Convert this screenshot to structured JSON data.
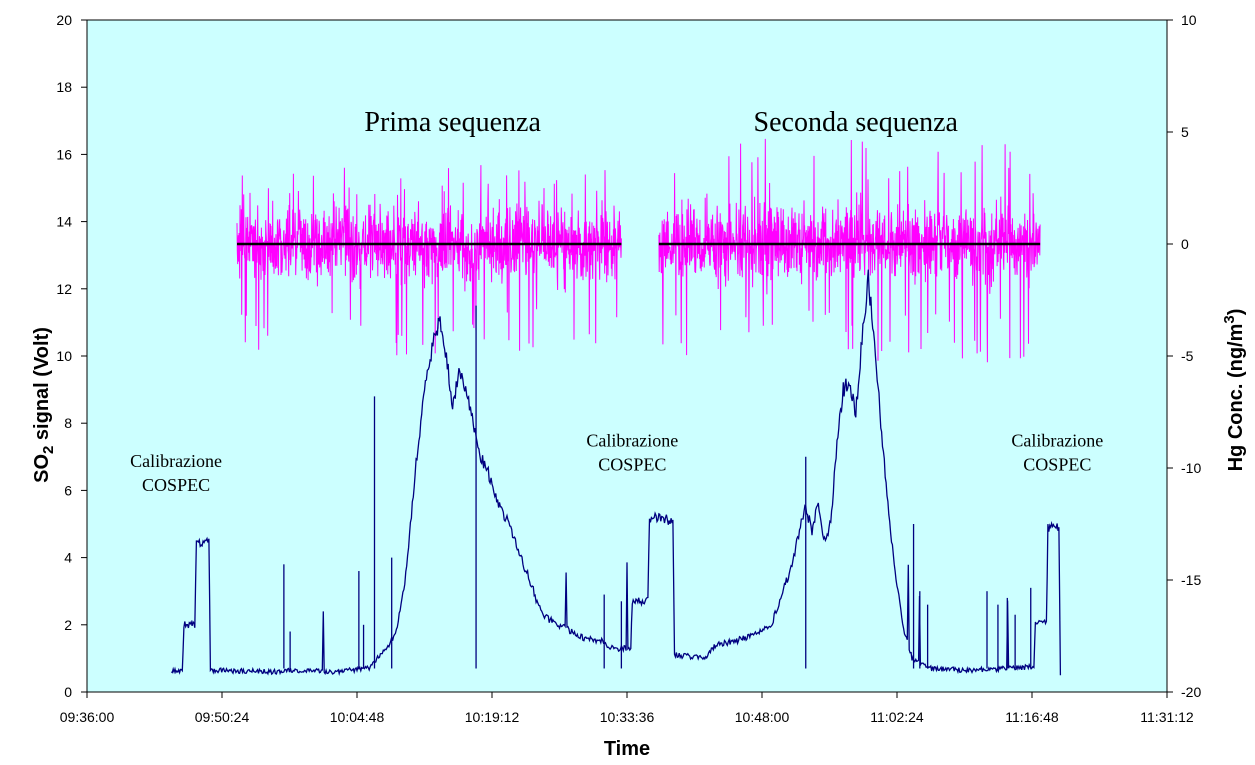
{
  "chart_data": {
    "type": "line",
    "title": "",
    "xlabel": "Time",
    "ylabel_left_main": "SO",
    "ylabel_left_sub": "2",
    "ylabel_left_rest": " signal (Volt)",
    "ylabel_right_main": "Hg Conc. (ng/m",
    "ylabel_right_sup": "3",
    "ylabel_right_rest": ")",
    "x_ticks": [
      "09:36:00",
      "09:50:24",
      "10:04:48",
      "10:19:12",
      "10:33:36",
      "10:48:00",
      "11:02:24",
      "11:16:48",
      "11:31:12"
    ],
    "y_left_ticks": [
      "0",
      "2",
      "4",
      "6",
      "8",
      "10",
      "12",
      "14",
      "16",
      "18",
      "20"
    ],
    "y_right_ticks": [
      "-20",
      "-15",
      "-10",
      "-5",
      "0",
      "5",
      "10"
    ],
    "ylim_left": [
      0,
      20
    ],
    "ylim_right": [
      -20,
      10
    ],
    "xlim": [
      "09:36:00",
      "11:31:12"
    ],
    "plot_background": "#ccffff",
    "annotations": [
      {
        "lines": [
          "Calibrazione",
          "COSPEC"
        ],
        "at_time": "09:45:30",
        "at_value": 6.7
      },
      {
        "lines": [
          "Calibrazione",
          "COSPEC"
        ],
        "at_time": "10:34:10",
        "at_value": 7.3
      },
      {
        "lines": [
          "Calibrazione",
          "COSPEC"
        ],
        "at_time": "11:19:30",
        "at_value": 7.3
      }
    ],
    "sequence_labels": [
      {
        "text": "Prima sequenza",
        "at_time": "10:15:00",
        "at_value": 17.0
      },
      {
        "text": "Seconda sequenza",
        "at_time": "10:58:00",
        "at_value": 17.0
      }
    ],
    "series": [
      {
        "axis": "left",
        "color": "#000080",
        "points": [
          [
            "09:45:00",
            0.65
          ],
          [
            "09:46:10",
            0.65
          ],
          [
            "09:46:20",
            2.0
          ],
          [
            "09:47:30",
            2.0
          ],
          [
            "09:47:40",
            4.45
          ],
          [
            "09:49:00",
            4.45
          ],
          [
            "09:49:10",
            0.65
          ],
          [
            "09:56:00",
            0.6
          ],
          [
            "09:58:00",
            0.65
          ],
          [
            "10:02:00",
            0.6
          ],
          [
            "10:06:00",
            0.7
          ],
          [
            "10:07:00",
            1.0
          ],
          [
            "10:08:00",
            1.3
          ],
          [
            "10:09:00",
            1.8
          ],
          [
            "10:10:00",
            3.5
          ],
          [
            "10:11:00",
            6.5
          ],
          [
            "10:12:00",
            9.0
          ],
          [
            "10:13:00",
            10.5
          ],
          [
            "10:13:40",
            11.0
          ],
          [
            "10:14:20",
            10.0
          ],
          [
            "10:15:00",
            8.5
          ],
          [
            "10:15:40",
            9.5
          ],
          [
            "10:16:30",
            9.0
          ],
          [
            "10:17:00",
            8.2
          ],
          [
            "10:18:00",
            7.0
          ],
          [
            "10:19:00",
            6.4
          ],
          [
            "10:20:00",
            5.5
          ],
          [
            "10:21:00",
            5.0
          ],
          [
            "10:22:00",
            4.2
          ],
          [
            "10:23:00",
            3.5
          ],
          [
            "10:24:00",
            2.7
          ],
          [
            "10:25:00",
            2.2
          ],
          [
            "10:27:00",
            1.9
          ],
          [
            "10:29:00",
            1.6
          ],
          [
            "10:31:00",
            1.5
          ],
          [
            "10:32:00",
            1.3
          ],
          [
            "10:34:00",
            1.3
          ],
          [
            "10:34:10",
            2.7
          ],
          [
            "10:35:50",
            2.7
          ],
          [
            "10:36:00",
            5.2
          ],
          [
            "10:38:30",
            5.1
          ],
          [
            "10:38:40",
            1.1
          ],
          [
            "10:42:00",
            1.0
          ],
          [
            "10:43:00",
            1.4
          ],
          [
            "10:45:00",
            1.5
          ],
          [
            "10:47:00",
            1.7
          ],
          [
            "10:49:00",
            2.0
          ],
          [
            "10:50:00",
            2.8
          ],
          [
            "10:51:00",
            3.6
          ],
          [
            "10:52:00",
            4.8
          ],
          [
            "10:52:40",
            5.5
          ],
          [
            "10:53:20",
            4.8
          ],
          [
            "10:54:00",
            5.6
          ],
          [
            "10:54:40",
            4.5
          ],
          [
            "10:55:20",
            5.0
          ],
          [
            "10:56:00",
            7.5
          ],
          [
            "10:56:40",
            9.0
          ],
          [
            "10:57:20",
            9.2
          ],
          [
            "10:58:00",
            8.3
          ],
          [
            "10:58:40",
            10.5
          ],
          [
            "10:59:20",
            12.3
          ],
          [
            "11:00:00",
            10.5
          ],
          [
            "11:00:40",
            8.0
          ],
          [
            "11:01:20",
            6.0
          ],
          [
            "11:02:00",
            4.0
          ],
          [
            "11:03:00",
            2.0
          ],
          [
            "11:04:00",
            1.0
          ],
          [
            "11:06:00",
            0.7
          ],
          [
            "11:10:00",
            0.65
          ],
          [
            "11:14:00",
            0.7
          ],
          [
            "11:17:00",
            0.75
          ],
          [
            "11:17:10",
            2.1
          ],
          [
            "11:18:20",
            2.1
          ],
          [
            "11:18:30",
            4.9
          ],
          [
            "11:19:40",
            4.9
          ],
          [
            "11:19:50",
            0.5
          ]
        ]
      },
      {
        "axis": "right",
        "color": "#ff00ff",
        "name": "",
        "noise_segments": [
          {
            "start": "09:52:00",
            "end": "10:33:00",
            "mean": 0.0,
            "amplitude_min": -5.0,
            "amplitude_max": 3.6
          },
          {
            "start": "10:37:00",
            "end": "11:17:40",
            "mean": 0.0,
            "amplitude_min": -5.3,
            "amplitude_max": 4.7
          }
        ]
      },
      {
        "axis": "right",
        "color": "#000000",
        "name": "",
        "segments": [
          {
            "start": "09:52:00",
            "end": "10:33:00",
            "value": 0.0
          },
          {
            "start": "10:37:00",
            "end": "11:17:40",
            "value": 0.0
          }
        ]
      }
    ]
  }
}
